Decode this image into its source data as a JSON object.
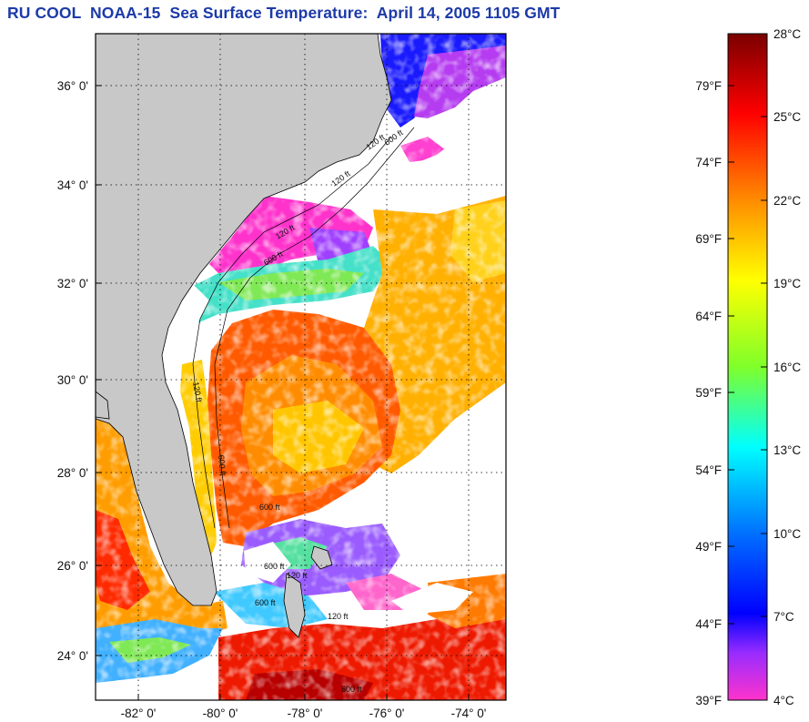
{
  "title": "RU COOL  NOAA-15  Sea Surface Temperature:  April 14, 2005 1105 GMT",
  "map": {
    "lat_labels": [
      "36° 0'",
      "34° 0'",
      "32° 0'",
      "30° 0'",
      "28° 0'",
      "26° 0'",
      "24° 0'"
    ],
    "lon_labels": [
      "-82° 0'",
      "-80° 0'",
      "-78° 0'",
      "-76° 0'",
      "-74° 0'"
    ],
    "land_color": "#c8c8c8",
    "cloud_color": "#ffffff",
    "isobath_labels": [
      "120 ft",
      "600 ft",
      "120 ft",
      "600 ft",
      "120 ft",
      "600 ft",
      "120 ft",
      "600 ft",
      "600 ft",
      "120 ft",
      "600 ft",
      "120 ft",
      "600 ft"
    ]
  },
  "colorbar": {
    "celsius_labels": [
      "28°C",
      "25°C",
      "22°C",
      "19°C",
      "16°C",
      "13°C",
      "10°C",
      "7°C",
      "4°C"
    ],
    "fahrenheit_labels": [
      "79°F",
      "74°F",
      "69°F",
      "64°F",
      "59°F",
      "54°F",
      "49°F",
      "44°F",
      "39°F"
    ],
    "colors": [
      "#7a0000",
      "#ff0000",
      "#ff8c00",
      "#ffff00",
      "#7fff2a",
      "#00ffff",
      "#0070ff",
      "#0000ff",
      "#9a2cff",
      "#ff33cc"
    ]
  }
}
